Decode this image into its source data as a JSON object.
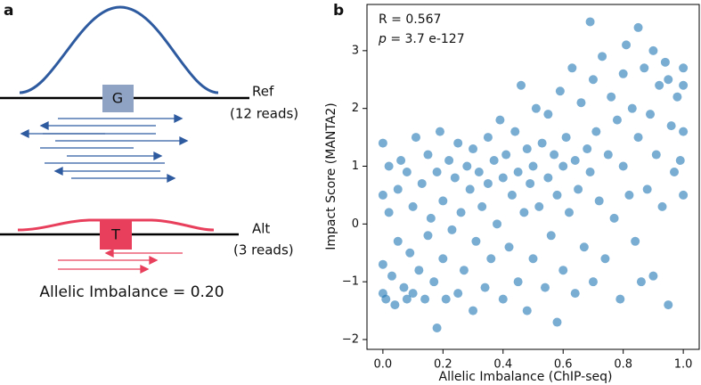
{
  "panel_a": {
    "label": "a",
    "ref_base": "G",
    "ref_name": "Ref",
    "ref_reads": "(12 reads)",
    "alt_base": "T",
    "alt_name": "Alt",
    "alt_reads": "(3 reads)",
    "caption": "Allelic Imbalance = 0.20"
  },
  "chart_data": {
    "type": "scatter",
    "panel_label": "b",
    "annotation_r": "R = 0.567",
    "annotation_p_symbol": "p",
    "annotation_p_value": "= 3.7 e-127",
    "x_label": "Allelic Imbalance (ChIP-seq)",
    "y_label": "Impact Score (MANTA2)",
    "color": "#1f77b4",
    "alpha": 0.6,
    "xlim": [
      -0.053,
      1.053
    ],
    "ylim": [
      -2.17,
      3.8
    ],
    "xticks": [
      {
        "value": 0,
        "label": "0.0"
      },
      0.2,
      0.4,
      0.6,
      0.8,
      {
        "value": 1,
        "label": "1.0"
      }
    ],
    "yticks": [
      {
        "value": -2,
        "label": "−2"
      },
      {
        "value": -1,
        "label": "−1"
      },
      0,
      1,
      2,
      3
    ],
    "x": [
      0.0,
      0.0,
      0.0,
      0.0,
      0.01,
      0.02,
      0.02,
      0.03,
      0.04,
      0.05,
      0.05,
      0.06,
      0.07,
      0.08,
      0.08,
      0.09,
      0.1,
      0.1,
      0.11,
      0.12,
      0.13,
      0.14,
      0.15,
      0.15,
      0.16,
      0.17,
      0.18,
      0.18,
      0.19,
      0.2,
      0.2,
      0.21,
      0.22,
      0.23,
      0.24,
      0.25,
      0.25,
      0.26,
      0.27,
      0.28,
      0.29,
      0.3,
      0.3,
      0.31,
      0.32,
      0.33,
      0.34,
      0.35,
      0.35,
      0.36,
      0.37,
      0.38,
      0.39,
      0.4,
      0.4,
      0.41,
      0.42,
      0.43,
      0.44,
      0.45,
      0.45,
      0.46,
      0.47,
      0.48,
      0.48,
      0.49,
      0.5,
      0.5,
      0.51,
      0.52,
      0.53,
      0.54,
      0.55,
      0.55,
      0.56,
      0.57,
      0.58,
      0.58,
      0.59,
      0.6,
      0.6,
      0.61,
      0.62,
      0.63,
      0.64,
      0.64,
      0.65,
      0.66,
      0.67,
      0.68,
      0.69,
      0.69,
      0.7,
      0.7,
      0.71,
      0.72,
      0.73,
      0.74,
      0.75,
      0.76,
      0.77,
      0.78,
      0.79,
      0.8,
      0.8,
      0.81,
      0.82,
      0.83,
      0.84,
      0.85,
      0.85,
      0.86,
      0.87,
      0.88,
      0.89,
      0.9,
      0.9,
      0.91,
      0.92,
      0.93,
      0.94,
      0.95,
      0.95,
      0.96,
      0.97,
      0.98,
      0.99,
      1.0,
      1.0,
      1.0,
      1.0
    ],
    "values": [
      -1.2,
      -0.7,
      1.4,
      0.5,
      -1.3,
      0.2,
      1.0,
      -0.9,
      -1.4,
      0.6,
      -0.3,
      1.1,
      -1.1,
      -1.3,
      0.9,
      -0.5,
      0.3,
      -1.2,
      1.5,
      -0.8,
      0.7,
      -1.3,
      1.2,
      -0.2,
      0.1,
      -1.0,
      -1.8,
      0.9,
      1.6,
      -0.6,
      0.4,
      -1.3,
      1.1,
      -0.1,
      0.8,
      -1.2,
      1.4,
      0.2,
      -0.8,
      1.0,
      0.6,
      -1.5,
      1.3,
      -0.3,
      0.9,
      0.3,
      -1.1,
      1.5,
      0.7,
      -0.6,
      1.1,
      0.0,
      1.8,
      -1.3,
      0.8,
      1.2,
      -0.4,
      0.5,
      1.6,
      -1.0,
      0.9,
      2.4,
      0.2,
      -1.5,
      1.3,
      0.7,
      -0.6,
      1.0,
      2.0,
      0.3,
      1.4,
      -1.1,
      0.8,
      1.9,
      -0.2,
      1.2,
      -1.7,
      0.5,
      2.3,
      1.0,
      -0.8,
      1.5,
      0.2,
      2.7,
      -1.2,
      1.1,
      0.6,
      2.1,
      -0.4,
      1.3,
      3.5,
      0.9,
      -1.0,
      2.5,
      1.6,
      0.4,
      2.9,
      -0.6,
      1.2,
      2.2,
      0.1,
      1.8,
      -1.3,
      2.6,
      1.0,
      3.1,
      0.5,
      2.0,
      -0.3,
      3.4,
      1.5,
      -1.0,
      2.7,
      0.6,
      1.9,
      -0.9,
      3.0,
      1.2,
      2.4,
      0.3,
      2.8,
      -1.4,
      2.5,
      1.7,
      0.9,
      2.2,
      1.1,
      2.7,
      1.6,
      0.5,
      2.4
    ]
  }
}
